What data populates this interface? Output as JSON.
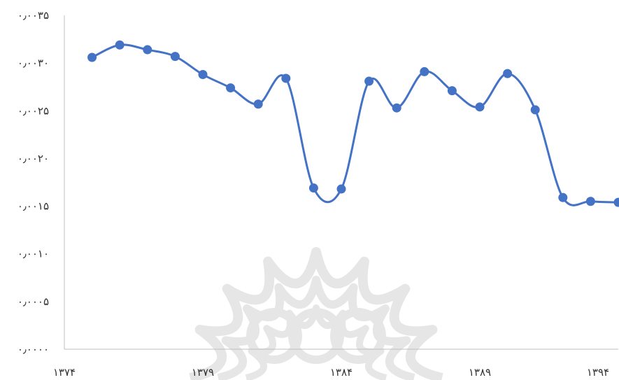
{
  "chart_data": {
    "type": "line",
    "title": "",
    "xlabel": "",
    "ylabel": "",
    "x": [
      1375,
      1376,
      1377,
      1378,
      1379,
      1380,
      1381,
      1382,
      1383,
      1384,
      1385,
      1386,
      1387,
      1388,
      1389,
      1390,
      1391,
      1392,
      1393,
      1394
    ],
    "series": [
      {
        "values": [
          0.00306,
          0.00319,
          0.00314,
          0.00307,
          0.00288,
          0.00274,
          0.00257,
          0.00284,
          0.00169,
          0.00168,
          0.00281,
          0.00253,
          0.00291,
          0.00271,
          0.00254,
          0.00289,
          0.00251,
          0.00159,
          0.00155,
          0.00154
        ],
        "color": "#4472C4"
      }
    ],
    "xlim": [
      1374,
      1394
    ],
    "ylim": [
      0,
      0.0035
    ],
    "x_ticks": [
      {
        "value": 1374,
        "label": "۱۳۷۴"
      },
      {
        "value": 1379,
        "label": "۱۳۷۹"
      },
      {
        "value": 1384,
        "label": "۱۳۸۴"
      },
      {
        "value": 1389,
        "label": "۱۳۸۹"
      },
      {
        "value": 1394,
        "label": "۱۳۹۴"
      }
    ],
    "y_ticks": [
      {
        "value": 0.0035,
        "label": "۰٫۰۰۳۵"
      },
      {
        "value": 0.003,
        "label": "۰٫۰۰۳۰"
      },
      {
        "value": 0.0025,
        "label": "۰٫۰۰۲۵"
      },
      {
        "value": 0.002,
        "label": "۰٫۰۰۲۰"
      },
      {
        "value": 0.0015,
        "label": "۰٫۰۰۱۵"
      },
      {
        "value": 0.001,
        "label": "۰٫۰۰۱۰"
      },
      {
        "value": 0.0005,
        "label": "۰٫۰۰۰۵"
      },
      {
        "value": 0.0,
        "label": "۰٫۰۰۰۰"
      }
    ],
    "grid": false,
    "legend": "none",
    "axis_color": "#BFBFBF",
    "watermark_color": "#E6E6E6"
  }
}
